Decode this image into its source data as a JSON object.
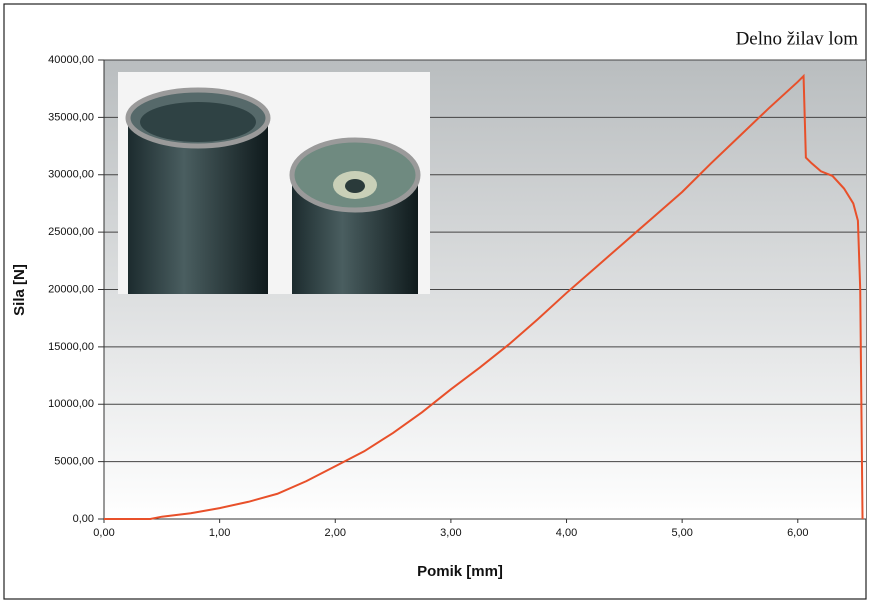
{
  "chart_data": {
    "type": "line",
    "annotation": "Delno žilav lom",
    "x_label": "Pomik [mm]",
    "y_label": "Sila [N]",
    "xlim": [
      0,
      6.59
    ],
    "ylim": [
      0,
      40000
    ],
    "xticks": [
      {
        "value": 0,
        "label": "0,00"
      },
      {
        "value": 1,
        "label": "1,00"
      },
      {
        "value": 2,
        "label": "2,00"
      },
      {
        "value": 3,
        "label": "3,00"
      },
      {
        "value": 4,
        "label": "4,00"
      },
      {
        "value": 5,
        "label": "5,00"
      },
      {
        "value": 6,
        "label": "6,00"
      }
    ],
    "yticks": [
      {
        "value": 0,
        "label": "0,00"
      },
      {
        "value": 5000,
        "label": "5000,00"
      },
      {
        "value": 10000,
        "label": "10000,00"
      },
      {
        "value": 15000,
        "label": "15000,00"
      },
      {
        "value": 20000,
        "label": "20000,00"
      },
      {
        "value": 25000,
        "label": "25000,00"
      },
      {
        "value": 30000,
        "label": "30000,00"
      },
      {
        "value": 35000,
        "label": "35000,00"
      },
      {
        "value": 40000,
        "label": "40000,00"
      }
    ],
    "grid": true,
    "x": [
      0,
      0.4,
      0.5,
      0.75,
      1.0,
      1.25,
      1.5,
      1.75,
      2.0,
      2.25,
      2.5,
      2.75,
      3.0,
      3.25,
      3.5,
      3.75,
      4.0,
      4.25,
      4.5,
      4.75,
      5.0,
      5.25,
      5.5,
      5.75,
      6.0,
      6.05,
      6.07,
      6.12,
      6.2,
      6.3,
      6.4,
      6.48,
      6.52,
      6.54,
      6.55,
      6.56
    ],
    "series": [
      {
        "color": "#e8502a",
        "values": [
          0,
          0,
          200,
          500,
          950,
          1500,
          2200,
          3300,
          4600,
          5900,
          7500,
          9300,
          11300,
          13200,
          15200,
          17400,
          19700,
          21900,
          24100,
          26300,
          28500,
          31000,
          33400,
          35800,
          38100,
          38600,
          31500,
          31000,
          30300,
          29900,
          28800,
          27500,
          26000,
          20000,
          10000,
          0
        ]
      }
    ]
  }
}
